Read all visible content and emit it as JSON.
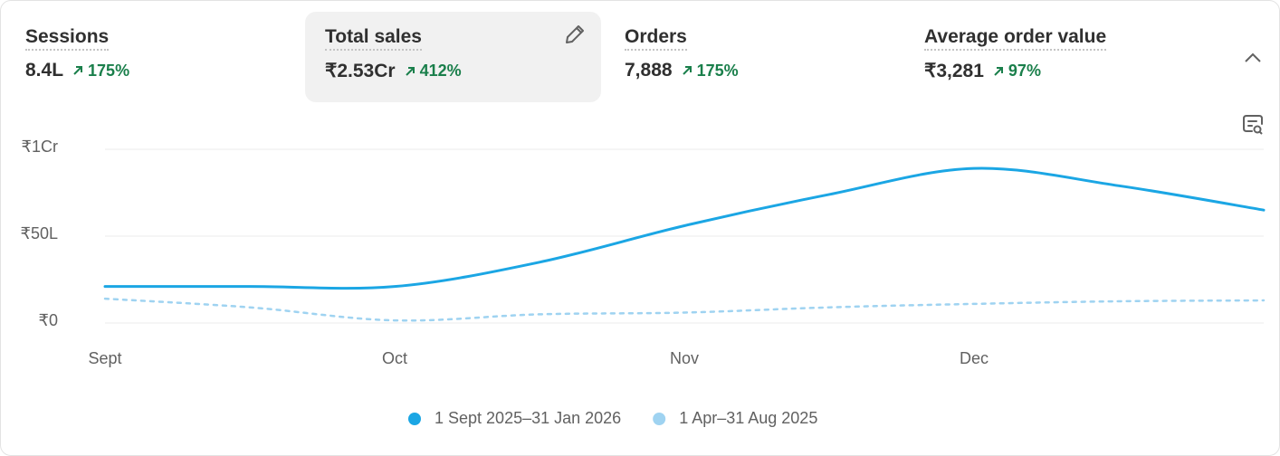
{
  "metrics": [
    {
      "label": "Sessions",
      "value": "8.4L",
      "change": "175%"
    },
    {
      "label": "Total sales",
      "value": "₹2.53Cr",
      "change": "412%"
    },
    {
      "label": "Orders",
      "value": "7,888",
      "change": "175%"
    },
    {
      "label": "Average order value",
      "value": "₹3,281",
      "change": "97%"
    }
  ],
  "chart_data": {
    "type": "line",
    "categories": [
      "Sept",
      null,
      "Oct",
      null,
      "Nov",
      null,
      "Dec",
      null,
      null
    ],
    "series": [
      {
        "name": "1 Sept 2025–31 Jan 2026",
        "color": "#1ba6e4",
        "values": [
          2100000,
          2100000,
          2100000,
          3500000,
          5600000,
          7400000,
          8900000,
          7900000,
          6500000
        ]
      },
      {
        "name": "1 Apr–31 Aug 2025",
        "color": "#9fd3f1",
        "values": [
          1400000,
          900000,
          150000,
          500000,
          600000,
          900000,
          1100000,
          1250000,
          1300000
        ]
      }
    ],
    "ylim": [
      0,
      10000000
    ],
    "yticks": [
      {
        "value": 0,
        "label": "₹0"
      },
      {
        "value": 5000000,
        "label": "₹50L"
      },
      {
        "value": 10000000,
        "label": "₹1Cr"
      }
    ],
    "grid": true,
    "legend": "bottom"
  }
}
